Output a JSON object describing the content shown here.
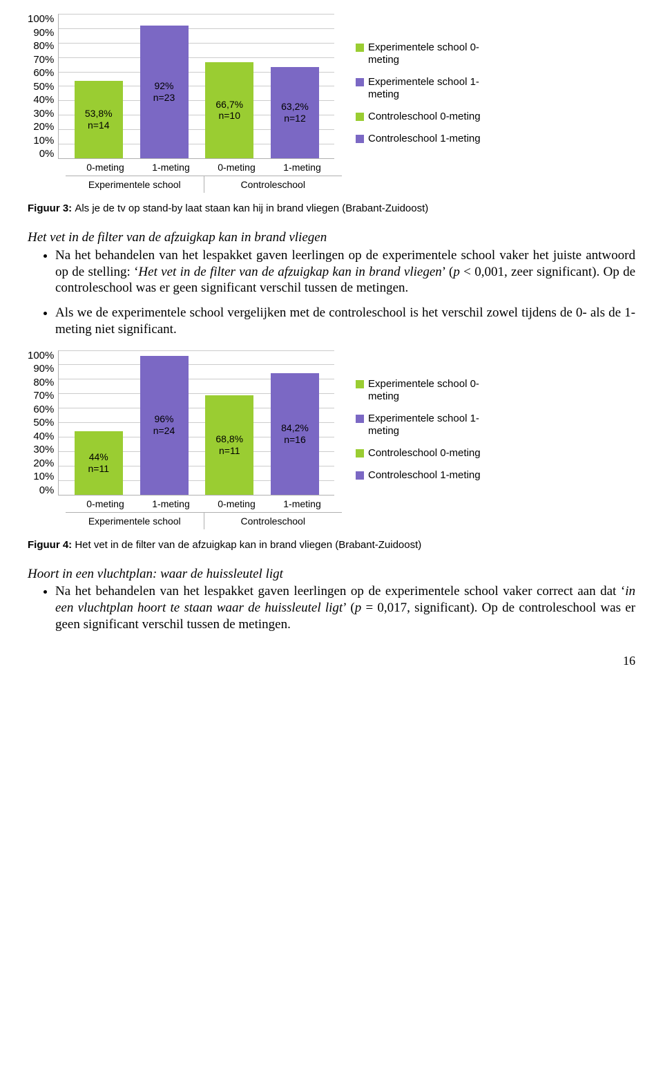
{
  "chart1": {
    "yticks": [
      "100%",
      "90%",
      "80%",
      "70%",
      "60%",
      "50%",
      "40%",
      "30%",
      "20%",
      "10%",
      "0%"
    ],
    "bars": [
      {
        "pct": 53.8,
        "label": "53,8%\nn=14",
        "color": "#9acd32",
        "xlabel": "0-meting"
      },
      {
        "pct": 92,
        "label": "92%\nn=23",
        "color": "#7b68c4",
        "xlabel": "1-meting"
      },
      {
        "pct": 66.7,
        "label": "66,7%\nn=10",
        "color": "#9acd32",
        "xlabel": "0-meting"
      },
      {
        "pct": 63.2,
        "label": "63,2%\nn=12",
        "color": "#7b68c4",
        "xlabel": "1-meting"
      }
    ],
    "groups": [
      "Experimentele school",
      "Controleschool"
    ],
    "legend": [
      {
        "color": "#9acd32",
        "label": "Experimentele school 0-meting"
      },
      {
        "color": "#7b68c4",
        "label": "Experimentele school 1-meting"
      },
      {
        "color": "#9acd32",
        "label": "Controleschool 0-meting"
      },
      {
        "color": "#7b68c4",
        "label": "Controleschool 1-meting"
      }
    ],
    "caption_bold": "Figuur 3: ",
    "caption_rest": "Als je de tv op stand-by laat staan kan hij in brand vliegen (Brabant-Zuidoost)"
  },
  "block1": {
    "heading": "Het vet in de filter van de afzuigkap kan in brand vliegen",
    "bullet1a": "Na het behandelen van het lespakket gaven leerlingen op de experimentele school vaker het juiste antwoord op de stelling: ‘",
    "bullet1b_italic": "Het vet in de filter van de afzuigkap kan in brand vliegen",
    "bullet1c": "’ (",
    "bullet1d_italic": "p",
    "bullet1e": " < 0,001, zeer significant). Op de controleschool was er geen significant verschil tussen de metingen.",
    "bullet2": "Als we de experimentele school vergelijken met de controleschool is het verschil zowel tijdens de 0- als de 1-meting niet significant."
  },
  "chart2": {
    "yticks": [
      "100%",
      "90%",
      "80%",
      "70%",
      "60%",
      "50%",
      "40%",
      "30%",
      "20%",
      "10%",
      "0%"
    ],
    "bars": [
      {
        "pct": 44,
        "label": "44%\nn=11",
        "color": "#9acd32",
        "xlabel": "0-meting"
      },
      {
        "pct": 96,
        "label": "96%\nn=24",
        "color": "#7b68c4",
        "xlabel": "1-meting"
      },
      {
        "pct": 68.8,
        "label": "68,8%\nn=11",
        "color": "#9acd32",
        "xlabel": "0-meting"
      },
      {
        "pct": 84.2,
        "label": "84,2%\nn=16",
        "color": "#7b68c4",
        "xlabel": "1-meting"
      }
    ],
    "groups": [
      "Experimentele school",
      "Controleschool"
    ],
    "legend": [
      {
        "color": "#9acd32",
        "label": "Experimentele school 0-meting"
      },
      {
        "color": "#7b68c4",
        "label": "Experimentele school 1-meting"
      },
      {
        "color": "#9acd32",
        "label": "Controleschool 0-meting"
      },
      {
        "color": "#7b68c4",
        "label": "Controleschool 1-meting"
      }
    ],
    "caption_bold": "Figuur 4: ",
    "caption_rest": "Het vet in de filter van de afzuigkap kan in brand vliegen (Brabant-Zuidoost)"
  },
  "block2": {
    "heading": "Hoort in een vluchtplan: waar de huissleutel ligt",
    "bullet1a": "Na het behandelen van het lespakket gaven leerlingen op de experimentele school vaker correct aan dat ‘",
    "bullet1b_italic": "in een vluchtplan hoort te staan waar de huissleutel ligt",
    "bullet1c": "’ (",
    "bullet1d_italic": "p",
    "bullet1e": " = 0,017, significant). Op de controleschool was er geen significant verschil tussen de metingen."
  },
  "pagenum": "16"
}
